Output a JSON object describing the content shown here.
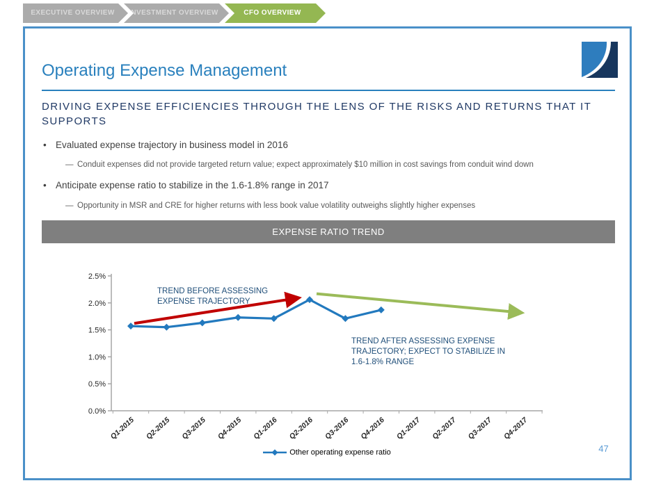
{
  "breadcrumb": {
    "tabs": [
      {
        "label": "EXECUTIVE OVERVIEW",
        "active": false
      },
      {
        "label": "INVESTMENT OVERVIEW",
        "active": false
      },
      {
        "label": "CFO OVERVIEW",
        "active": true
      }
    ]
  },
  "slide": {
    "title": "Operating Expense Management",
    "subtitle": "DRIVING EXPENSE EFFICIENCIES THROUGH THE LENS OF THE RISKS AND RETURNS THAT IT SUPPORTS",
    "bullets": [
      {
        "text": "Evaluated expense trajectory in business model in 2016",
        "sub": "Conduit expenses did not provide targeted return value; expect approximately $10 million in cost savings from conduit wind down"
      },
      {
        "text": "Anticipate expense ratio to stabilize in the 1.6-1.8% range in 2017",
        "sub": "Opportunity in MSR and CRE for higher returns with less book value volatility outweighs slightly higher expenses"
      }
    ],
    "section_banner": "EXPENSE RATIO TREND",
    "page_number": "47"
  },
  "chart_data": {
    "type": "line",
    "title": "EXPENSE RATIO TREND",
    "categories": [
      "Q1-2015",
      "Q2-2015",
      "Q3-2015",
      "Q4-2015",
      "Q1-2016",
      "Q2-2016",
      "Q3-2016",
      "Q4-2016",
      "Q1-2017",
      "Q2-2017",
      "Q3-2017",
      "Q4-2017"
    ],
    "series": [
      {
        "name": "Other operating expense ratio",
        "values": [
          1.57,
          1.55,
          1.63,
          1.73,
          1.71,
          2.06,
          1.71,
          1.87,
          null,
          null,
          null,
          null
        ]
      }
    ],
    "ylim": [
      0,
      2.5
    ],
    "yticks": [
      "0.0%",
      "0.5%",
      "1.0%",
      "1.5%",
      "2.0%",
      "2.5%"
    ],
    "grid": false,
    "legend_position": "bottom",
    "line_color": "#2279be",
    "marker": "diamond",
    "annotations": [
      {
        "name": "trend-before-label",
        "text": "TREND BEFORE ASSESSING\nEXPENSE TRAJECTORY",
        "color": "#1f4e79"
      },
      {
        "name": "trend-after-label",
        "text": "TREND AFTER ASSESSING EXPENSE\nTRAJECTORY; EXPECT TO STABILIZE IN\n1.6-1.8% RANGE",
        "color": "#1f4e79"
      }
    ],
    "arrows": [
      {
        "name": "trend-before-arrow",
        "color": "#c00000",
        "from": {
          "category": "Q1-2015",
          "value": 1.62,
          "dx": 5
        },
        "to": {
          "category": "Q2-2016",
          "value": 2.09,
          "dx": -17
        }
      },
      {
        "name": "trend-after-arrow",
        "color": "#9bbb59",
        "from": {
          "category": "Q2-2016",
          "value": 2.17,
          "dx": 10
        },
        "to": {
          "category": "Q4-2017",
          "value": 1.82,
          "dx": -5
        }
      }
    ]
  },
  "colors": {
    "accent_blue": "#2980bd",
    "navy": "#1f3864",
    "border_blue": "#4a90c8",
    "banner_gray": "#7f7f7f",
    "tab_gray": "#ababab",
    "tab_green": "#94b752",
    "arrow_red": "#c00000",
    "arrow_green": "#9bbb59",
    "page_number_blue": "#5b9bd5"
  }
}
